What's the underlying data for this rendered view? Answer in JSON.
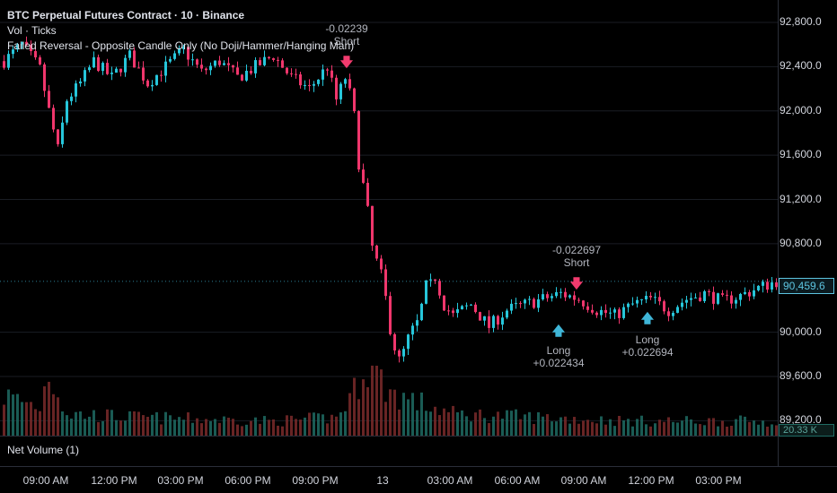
{
  "legend": {
    "title": "BTC Perpetual Futures Contract · 10 · Binance",
    "volume": "Vol · Ticks",
    "indicator": "Failed Reversal - Opposite Candle Only (No Doji/Hammer/Hanging Man)"
  },
  "pane2_label": "Net Volume (1)",
  "badges": {
    "last_price": "90,459.6",
    "volume": "20.33 K"
  },
  "signals": {
    "short1": {
      "value": "-0.02239",
      "label": "Short"
    },
    "short2": {
      "value": "-0.022697",
      "label": "Short"
    },
    "long1": {
      "label": "Long",
      "value": "+0.022434"
    },
    "long2": {
      "label": "Long",
      "value": "+0.022694"
    }
  },
  "colors": {
    "up": "#26c6da",
    "down": "#f0366c",
    "vol_up": "#1f6b63",
    "vol_down": "#7a2a2a",
    "grid": "#1a1d24"
  },
  "chart_data": {
    "type": "candlestick",
    "title": "BTC Perpetual Futures Contract · 10 · Binance",
    "y_ticks": [
      "92,800.0",
      "92,400.0",
      "92,000.0",
      "91,600.0",
      "91,200.0",
      "90,800.0",
      "90,000.0",
      "89,600.0",
      "89,200.0"
    ],
    "y_tick_values": [
      92800,
      92400,
      92000,
      91600,
      91200,
      90800,
      90000,
      89600,
      89200
    ],
    "ylim": [
      89200,
      92900
    ],
    "x_ticks": [
      "09:00 AM",
      "12:00 PM",
      "03:00 PM",
      "06:00 PM",
      "09:00 PM",
      "13",
      "03:00 AM",
      "06:00 AM",
      "09:00 AM",
      "12:00 PM",
      "03:00 PM"
    ],
    "last_price": 90459.6,
    "price_path": [
      [
        0,
        92450
      ],
      [
        4,
        92600
      ],
      [
        8,
        92380
      ],
      [
        10,
        92000
      ],
      [
        12,
        91650
      ],
      [
        14,
        92100
      ],
      [
        17,
        92250
      ],
      [
        20,
        92450
      ],
      [
        24,
        92300
      ],
      [
        28,
        92500
      ],
      [
        32,
        92250
      ],
      [
        36,
        92400
      ],
      [
        40,
        92550
      ],
      [
        44,
        92350
      ],
      [
        48,
        92450
      ],
      [
        52,
        92300
      ],
      [
        56,
        92400
      ],
      [
        60,
        92500
      ],
      [
        64,
        92300
      ],
      [
        68,
        92200
      ],
      [
        70,
        92300
      ],
      [
        72,
        92400
      ],
      [
        74,
        92100
      ],
      [
        76,
        92300
      ],
      [
        78,
        91900
      ],
      [
        80,
        91300
      ],
      [
        82,
        90750
      ],
      [
        84,
        90450
      ],
      [
        86,
        90100
      ],
      [
        88,
        89700
      ],
      [
        90,
        89900
      ],
      [
        92,
        90050
      ],
      [
        94,
        90350
      ],
      [
        96,
        90500
      ],
      [
        98,
        90250
      ],
      [
        100,
        90150
      ],
      [
        104,
        90250
      ],
      [
        108,
        90050
      ],
      [
        112,
        90200
      ],
      [
        116,
        90250
      ],
      [
        120,
        90300
      ],
      [
        124,
        90350
      ],
      [
        128,
        90300
      ],
      [
        132,
        90200
      ],
      [
        136,
        90150
      ],
      [
        140,
        90250
      ],
      [
        144,
        90300
      ],
      [
        148,
        90200
      ],
      [
        152,
        90300
      ],
      [
        156,
        90350
      ],
      [
        160,
        90280
      ],
      [
        164,
        90330
      ],
      [
        168,
        90400
      ],
      [
        172,
        90460
      ]
    ],
    "volume_path": [
      [
        0,
        0.55
      ],
      [
        8,
        0.4
      ],
      [
        10,
        0.9
      ],
      [
        14,
        0.3
      ],
      [
        30,
        0.25
      ],
      [
        60,
        0.2
      ],
      [
        74,
        0.25
      ],
      [
        78,
        0.6
      ],
      [
        80,
        1.0
      ],
      [
        82,
        0.9
      ],
      [
        84,
        0.75
      ],
      [
        86,
        0.6
      ],
      [
        90,
        0.5
      ],
      [
        100,
        0.3
      ],
      [
        140,
        0.2
      ],
      [
        172,
        0.2
      ]
    ]
  }
}
